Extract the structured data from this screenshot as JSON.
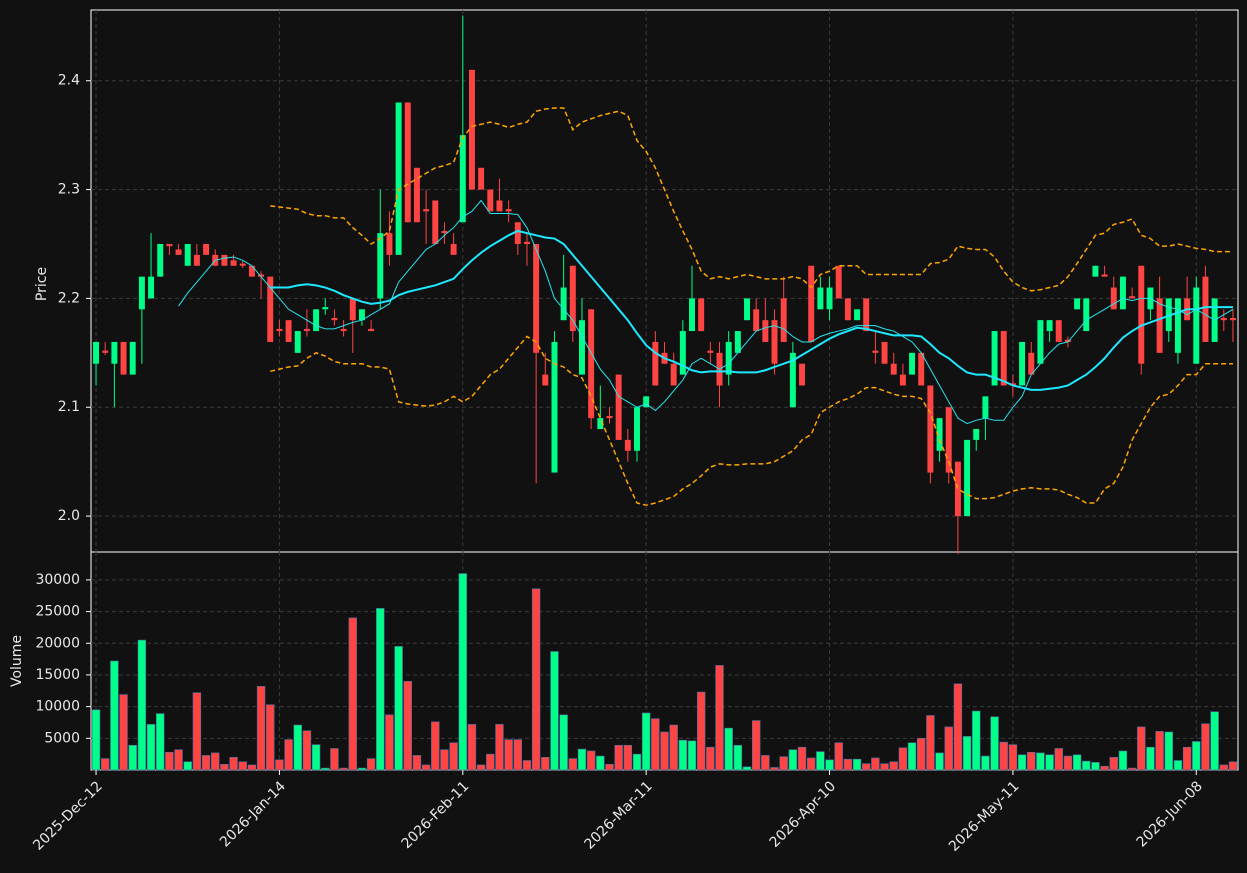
{
  "chart_data": {
    "type": "candlestick",
    "ylabel": "Price",
    "grid": true,
    "up_color": "#00ff88",
    "down_color": "#ff4444",
    "ylim": [
      1.967,
      2.465
    ],
    "yticks": [
      {
        "value": 2,
        "label": "2.0"
      },
      2.1,
      2.2,
      2.3,
      2.4
    ],
    "categories": [
      "2025-Dec-12",
      null,
      null,
      null,
      null,
      null,
      null,
      null,
      null,
      null,
      null,
      null,
      null,
      null,
      null,
      null,
      null,
      null,
      null,
      null,
      "2026-Jan-14",
      null,
      null,
      null,
      null,
      null,
      null,
      null,
      null,
      null,
      null,
      null,
      null,
      null,
      null,
      null,
      null,
      null,
      null,
      null,
      "2026-Feb-11",
      null,
      null,
      null,
      null,
      null,
      null,
      null,
      null,
      null,
      null,
      null,
      null,
      null,
      null,
      null,
      null,
      null,
      null,
      null,
      "2026-Mar-11",
      null,
      null,
      null,
      null,
      null,
      null,
      null,
      null,
      null,
      null,
      null,
      null,
      null,
      null,
      null,
      null,
      null,
      null,
      null,
      "2026-Apr-10",
      null,
      null,
      null,
      null,
      null,
      null,
      null,
      null,
      null,
      null,
      null,
      null,
      null,
      null,
      null,
      null,
      null,
      null,
      null,
      "2026-May-11",
      null,
      null,
      null,
      null,
      null,
      null,
      null,
      null,
      null,
      null,
      null,
      null,
      null,
      null,
      null,
      null,
      null,
      null,
      null,
      "2026-Jun-08",
      null,
      null,
      null,
      null
    ],
    "open": [
      2.14,
      2.152,
      2.14,
      2.16,
      2.13,
      2.19,
      2.2,
      2.22,
      2.25,
      2.245,
      2.23,
      2.24,
      2.25,
      2.24,
      2.24,
      2.235,
      2.232,
      2.23,
      2.222,
      2.22,
      2.172,
      2.18,
      2.15,
      2.172,
      2.17,
      2.19,
      2.182,
      2.172,
      2.2,
      2.18,
      2.172,
      2.2,
      2.26,
      2.24,
      2.38,
      2.32,
      2.282,
      2.29,
      2.262,
      2.25,
      2.27,
      2.41,
      2.32,
      2.3,
      2.29,
      2.282,
      2.27,
      2.252,
      2.25,
      2.13,
      2.04,
      2.18,
      2.23,
      2.13,
      2.19,
      2.08,
      2.092,
      2.13,
      2.07,
      2.06,
      2.1,
      2.16,
      2.15,
      2.14,
      2.13,
      2.17,
      2.2,
      2.152,
      2.15,
      2.13,
      2.15,
      2.18,
      2.19,
      2.18,
      2.18,
      2.2,
      2.1,
      2.14,
      2.23,
      2.19,
      2.19,
      2.23,
      2.2,
      2.18,
      2.2,
      2.152,
      2.16,
      2.14,
      2.13,
      2.13,
      2.15,
      2.12,
      2.06,
      2.1,
      2.05,
      2,
      2.07,
      2.09,
      2.12,
      2.17,
      2.122,
      2.12,
      2.15,
      2.14,
      2.17,
      2.18,
      2.162,
      2.19,
      2.17,
      2.22,
      2.222,
      2.21,
      2.19,
      2.202,
      2.23,
      2.19,
      2.2,
      2.17,
      2.15,
      2.2,
      2.14,
      2.22,
      2.16,
      2.182,
      2.182
    ],
    "high": [
      2.16,
      2.16,
      2.16,
      2.16,
      2.16,
      2.22,
      2.26,
      2.25,
      2.25,
      2.25,
      2.25,
      2.25,
      2.25,
      2.245,
      2.24,
      2.24,
      2.235,
      2.23,
      2.225,
      2.22,
      2.18,
      2.18,
      2.17,
      2.19,
      2.19,
      2.2,
      2.19,
      2.18,
      2.2,
      2.19,
      2.18,
      2.3,
      2.28,
      2.38,
      2.38,
      2.32,
      2.3,
      2.29,
      2.27,
      2.26,
      2.46,
      2.41,
      2.32,
      2.3,
      2.31,
      2.29,
      2.27,
      2.26,
      2.25,
      2.15,
      2.17,
      2.24,
      2.23,
      2.2,
      2.19,
      2.12,
      2.1,
      2.13,
      2.08,
      2.1,
      2.11,
      2.17,
      2.16,
      2.15,
      2.18,
      2.23,
      2.2,
      2.16,
      2.16,
      2.17,
      2.17,
      2.2,
      2.2,
      2.2,
      2.19,
      2.22,
      2.16,
      2.14,
      2.23,
      2.22,
      2.22,
      2.23,
      2.2,
      2.19,
      2.2,
      2.17,
      2.16,
      2.15,
      2.14,
      2.15,
      2.15,
      2.12,
      2.09,
      2.1,
      2.05,
      2.07,
      2.08,
      2.11,
      2.17,
      2.17,
      2.13,
      2.16,
      2.16,
      2.18,
      2.18,
      2.18,
      2.165,
      2.2,
      2.2,
      2.23,
      2.23,
      2.22,
      2.22,
      2.21,
      2.23,
      2.21,
      2.22,
      2.2,
      2.2,
      2.22,
      2.22,
      2.23,
      2.2,
      2.19,
      2.19
    ],
    "low": [
      2.12,
      2.148,
      2.1,
      2.13,
      2.13,
      2.14,
      2.2,
      2.22,
      2.24,
      2.24,
      2.23,
      2.23,
      2.24,
      2.23,
      2.23,
      2.23,
      2.228,
      2.22,
      2.2,
      2.16,
      2.165,
      2.16,
      2.15,
      2.165,
      2.17,
      2.185,
      2.175,
      2.165,
      2.15,
      2.175,
      2.17,
      2.19,
      2.23,
      2.24,
      2.27,
      2.27,
      2.25,
      2.25,
      2.25,
      2.24,
      2.27,
      2.3,
      2.3,
      2.28,
      2.28,
      2.27,
      2.24,
      2.23,
      2.03,
      2.12,
      2.04,
      2.18,
      2.16,
      2.13,
      2.08,
      2.08,
      2.085,
      2.07,
      2.05,
      2.05,
      2.1,
      2.12,
      2.14,
      2.12,
      2.13,
      2.17,
      2.17,
      2.14,
      2.1,
      2.12,
      2.15,
      2.18,
      2.17,
      2.16,
      2.13,
      2.16,
      2.1,
      2.12,
      2.16,
      2.19,
      2.18,
      2.2,
      2.18,
      2.18,
      2.17,
      2.14,
      2.14,
      2.13,
      2.12,
      2.13,
      2.12,
      2.03,
      2.05,
      2.03,
      1.965,
      2,
      2.06,
      2.07,
      2.12,
      2.12,
      2.11,
      2.12,
      2.13,
      2.14,
      2.16,
      2.16,
      2.155,
      2.19,
      2.17,
      2.22,
      2.22,
      2.19,
      2.19,
      2.2,
      2.13,
      2.18,
      2.15,
      2.16,
      2.14,
      2.18,
      2.14,
      2.16,
      2.16,
      2.17,
      2.16
    ],
    "close": [
      2.16,
      2.15,
      2.16,
      2.13,
      2.16,
      2.22,
      2.22,
      2.25,
      2.248,
      2.24,
      2.25,
      2.23,
      2.24,
      2.23,
      2.23,
      2.23,
      2.23,
      2.22,
      2.22,
      2.16,
      2.17,
      2.16,
      2.17,
      2.17,
      2.19,
      2.192,
      2.18,
      2.17,
      2.18,
      2.19,
      2.17,
      2.26,
      2.24,
      2.38,
      2.27,
      2.27,
      2.28,
      2.25,
      2.26,
      2.24,
      2.35,
      2.3,
      2.3,
      2.28,
      2.28,
      2.28,
      2.25,
      2.25,
      2.15,
      2.12,
      2.16,
      2.21,
      2.17,
      2.18,
      2.09,
      2.09,
      2.09,
      2.07,
      2.06,
      2.1,
      2.11,
      2.12,
      2.14,
      2.12,
      2.17,
      2.2,
      2.17,
      2.15,
      2.12,
      2.16,
      2.17,
      2.2,
      2.17,
      2.16,
      2.14,
      2.16,
      2.15,
      2.12,
      2.16,
      2.21,
      2.21,
      2.2,
      2.18,
      2.19,
      2.17,
      2.15,
      2.14,
      2.13,
      2.12,
      2.15,
      2.12,
      2.04,
      2.09,
      2.04,
      2,
      2.07,
      2.08,
      2.11,
      2.17,
      2.12,
      2.12,
      2.16,
      2.13,
      2.18,
      2.18,
      2.16,
      2.16,
      2.2,
      2.2,
      2.23,
      2.22,
      2.19,
      2.22,
      2.2,
      2.14,
      2.21,
      2.15,
      2.2,
      2.2,
      2.18,
      2.21,
      2.16,
      2.2,
      2.18,
      2.18
    ],
    "series": [
      {
        "color": "#26e6f0",
        "width": 1,
        "dash": "none",
        "values": [
          null,
          null,
          null,
          null,
          null,
          null,
          null,
          null,
          null,
          2.193,
          2.205,
          2.215,
          2.225,
          2.235,
          2.237,
          2.238,
          2.235,
          2.23,
          2.22,
          2.21,
          2.2,
          2.19,
          2.185,
          2.18,
          2.175,
          2.172,
          2.172,
          2.175,
          2.178,
          2.18,
          2.185,
          2.19,
          2.195,
          2.215,
          2.225,
          2.235,
          2.245,
          2.25,
          2.258,
          2.265,
          2.275,
          2.28,
          2.29,
          2.278,
          2.278,
          2.278,
          2.277,
          2.265,
          2.245,
          2.225,
          2.2,
          2.19,
          2.18,
          2.165,
          2.15,
          2.135,
          2.125,
          2.11,
          2.105,
          2.1,
          2.103,
          2.097,
          2.105,
          2.115,
          2.125,
          2.14,
          2.145,
          2.14,
          2.135,
          2.14,
          2.15,
          2.16,
          2.17,
          2.173,
          2.175,
          2.172,
          2.165,
          2.16,
          2.16,
          2.165,
          2.168,
          2.17,
          2.172,
          2.175,
          2.175,
          2.175,
          2.172,
          2.17,
          2.165,
          2.16,
          2.15,
          2.135,
          2.12,
          2.105,
          2.09,
          2.085,
          2.088,
          2.09,
          2.088,
          2.088,
          2.1,
          2.11,
          2.13,
          2.14,
          2.15,
          2.158,
          2.16,
          2.17,
          2.18,
          2.185,
          2.19,
          2.195,
          2.2,
          2.198,
          2.2,
          2.2,
          2.195,
          2.192,
          2.19,
          2.185,
          2.19,
          2.185,
          2.18,
          2.185,
          2.19
        ]
      },
      {
        "color": "#1ee8ff",
        "width": 2,
        "dash": "none",
        "values": [
          null,
          null,
          null,
          null,
          null,
          null,
          null,
          null,
          null,
          null,
          null,
          null,
          null,
          null,
          null,
          null,
          null,
          null,
          null,
          2.21,
          2.21,
          2.21,
          2.212,
          2.213,
          2.212,
          2.21,
          2.207,
          2.203,
          2.2,
          2.197,
          2.195,
          2.196,
          2.198,
          2.203,
          2.206,
          2.208,
          2.21,
          2.212,
          2.215,
          2.218,
          2.227,
          2.235,
          2.242,
          2.248,
          2.253,
          2.258,
          2.262,
          2.26,
          2.258,
          2.256,
          2.255,
          2.25,
          2.24,
          2.23,
          2.22,
          2.21,
          2.2,
          2.19,
          2.18,
          2.168,
          2.157,
          2.15,
          2.145,
          2.142,
          2.138,
          2.134,
          2.132,
          2.133,
          2.133,
          2.133,
          2.132,
          2.132,
          2.132,
          2.134,
          2.137,
          2.14,
          2.143,
          2.148,
          2.153,
          2.158,
          2.163,
          2.167,
          2.17,
          2.173,
          2.172,
          2.17,
          2.168,
          2.166,
          2.166,
          2.166,
          2.165,
          2.158,
          2.15,
          2.145,
          2.138,
          2.132,
          2.13,
          2.13,
          2.127,
          2.124,
          2.12,
          2.118,
          2.116,
          2.116,
          2.117,
          2.118,
          2.12,
          2.125,
          2.13,
          2.137,
          2.145,
          2.155,
          2.164,
          2.17,
          2.175,
          2.178,
          2.181,
          2.184,
          2.187,
          2.19,
          2.19,
          2.192,
          2.192,
          2.192,
          2.192
        ]
      },
      {
        "color": "#ffa500",
        "width": 1.5,
        "dash": "5 3",
        "values": [
          null,
          null,
          null,
          null,
          null,
          null,
          null,
          null,
          null,
          null,
          null,
          null,
          null,
          null,
          null,
          null,
          null,
          null,
          null,
          2.285,
          2.284,
          2.283,
          2.282,
          2.278,
          2.276,
          2.276,
          2.274,
          2.274,
          2.265,
          2.258,
          2.25,
          2.255,
          2.262,
          2.3,
          2.305,
          2.31,
          2.315,
          2.32,
          2.322,
          2.325,
          2.348,
          2.358,
          2.36,
          2.362,
          2.36,
          2.357,
          2.36,
          2.362,
          2.372,
          2.374,
          2.375,
          2.375,
          2.355,
          2.362,
          2.365,
          2.368,
          2.37,
          2.372,
          2.368,
          2.345,
          2.335,
          2.32,
          2.3,
          2.28,
          2.262,
          2.245,
          2.225,
          2.218,
          2.22,
          2.218,
          2.22,
          2.222,
          2.22,
          2.218,
          2.218,
          2.218,
          2.22,
          2.218,
          2.21,
          2.222,
          2.225,
          2.23,
          2.23,
          2.23,
          2.222,
          2.222,
          2.222,
          2.222,
          2.222,
          2.222,
          2.222,
          2.232,
          2.233,
          2.236,
          2.248,
          2.246,
          2.245,
          2.245,
          2.238,
          2.225,
          2.215,
          2.21,
          2.207,
          2.208,
          2.21,
          2.212,
          2.22,
          2.232,
          2.245,
          2.258,
          2.26,
          2.268,
          2.27,
          2.273,
          2.258,
          2.255,
          2.248,
          2.248,
          2.25,
          2.248,
          2.246,
          2.245,
          2.243,
          2.243,
          2.243
        ]
      },
      {
        "color": "#ffa500",
        "width": 1.5,
        "dash": "5 3",
        "values": [
          null,
          null,
          null,
          null,
          null,
          null,
          null,
          null,
          null,
          null,
          null,
          null,
          null,
          null,
          null,
          null,
          null,
          null,
          null,
          2.133,
          2.135,
          2.137,
          2.138,
          2.145,
          2.15,
          2.147,
          2.142,
          2.14,
          2.14,
          2.14,
          2.137,
          2.137,
          2.135,
          2.105,
          2.103,
          2.102,
          2.101,
          2.102,
          2.105,
          2.11,
          2.105,
          2.11,
          2.12,
          2.13,
          2.135,
          2.145,
          2.155,
          2.165,
          2.16,
          2.145,
          2.14,
          2.137,
          2.13,
          2.127,
          2.11,
          2.09,
          2.07,
          2.05,
          2.03,
          2.012,
          2.01,
          2.012,
          2.015,
          2.018,
          2.025,
          2.03,
          2.037,
          2.045,
          2.048,
          2.047,
          2.047,
          2.048,
          2.048,
          2.048,
          2.05,
          2.055,
          2.06,
          2.07,
          2.075,
          2.095,
          2.1,
          2.105,
          2.108,
          2.112,
          2.118,
          2.118,
          2.115,
          2.112,
          2.11,
          2.11,
          2.108,
          2.095,
          2.07,
          2.05,
          2.025,
          2.02,
          2.016,
          2.016,
          2.017,
          2.02,
          2.023,
          2.025,
          2.026,
          2.025,
          2.025,
          2.024,
          2.02,
          2.017,
          2.012,
          2.012,
          2.025,
          2.03,
          2.045,
          2.07,
          2.085,
          2.1,
          2.11,
          2.112,
          2.12,
          2.13,
          2.13,
          2.14,
          2.14,
          2.14,
          2.14
        ]
      }
    ],
    "volume": {
      "ylabel": "Volume",
      "ylim": [
        0,
        34400
      ],
      "yticks": [
        5000,
        10000,
        15000,
        20000,
        25000,
        30000
      ],
      "values": [
        9500,
        1800,
        17200,
        11900,
        3900,
        20500,
        7200,
        8900,
        2800,
        3200,
        1300,
        12200,
        2300,
        2700,
        900,
        2000,
        1300,
        800,
        13200,
        10300,
        1600,
        4800,
        7100,
        6200,
        4000,
        300,
        3400,
        300,
        24000,
        300,
        1800,
        25500,
        8700,
        19500,
        14000,
        2300,
        800,
        7600,
        3200,
        4300,
        31000,
        7200,
        800,
        2500,
        7200,
        4800,
        4800,
        1500,
        28600,
        2000,
        18700,
        8700,
        1800,
        3300,
        3000,
        2200,
        900,
        3900,
        3900,
        2500,
        9000,
        8100,
        6000,
        7100,
        4700,
        4600,
        12300,
        3600,
        16500,
        6600,
        3900,
        500,
        7800,
        2300,
        400,
        2100,
        3200,
        3600,
        1900,
        2900,
        1600,
        4300,
        1700,
        1700,
        1000,
        1900,
        1000,
        1300,
        3500,
        4300,
        5000,
        8600,
        2700,
        6800,
        13600,
        5300,
        9300,
        2200,
        8400,
        4400,
        4000,
        2400,
        2800,
        2700,
        2400,
        3400,
        2200,
        2400,
        1400,
        1200,
        600,
        2000,
        3000,
        300,
        6800,
        3600,
        6100,
        6000,
        1500,
        3600,
        4500,
        7300,
        9200,
        800,
        1300
      ]
    }
  }
}
